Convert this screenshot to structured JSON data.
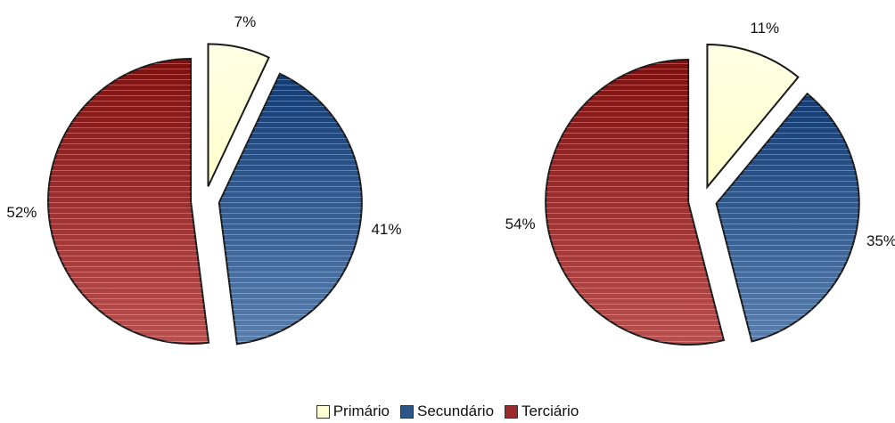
{
  "chart_data": [
    {
      "type": "pie",
      "categories": [
        "Primário",
        "Secundário",
        "Terciário"
      ],
      "values": [
        7,
        41,
        52
      ],
      "labels": [
        "7%",
        "41%",
        "52%"
      ]
    },
    {
      "type": "pie",
      "categories": [
        "Primário",
        "Secundário",
        "Terciário"
      ],
      "values": [
        11,
        35,
        54
      ],
      "labels": [
        "11%",
        "35%",
        "54%"
      ]
    }
  ],
  "legend": {
    "placement": "bottom-center",
    "items": [
      {
        "label": "Primário",
        "color": "#FFFFD5"
      },
      {
        "label": "Secundário",
        "color": "#2E5588"
      },
      {
        "label": "Terciário",
        "color": "#9B2A2A"
      }
    ]
  },
  "colors": {
    "primario": "#FFFFD5",
    "secundario": "#2E5588",
    "terciario": "#9B2A2A",
    "outline": "#1A1A1A"
  }
}
